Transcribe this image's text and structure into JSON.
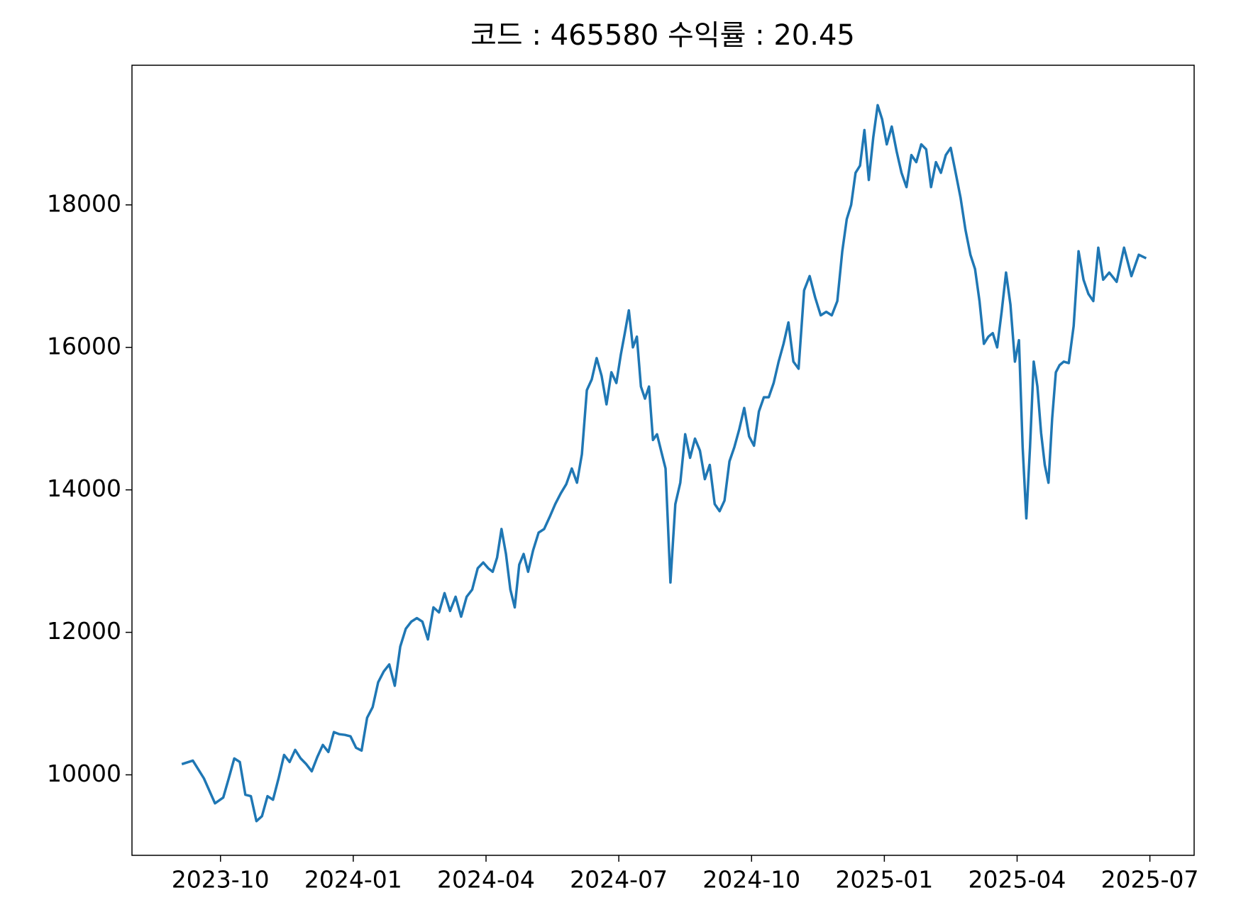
{
  "chart_data": {
    "type": "line",
    "title": "코드 : 465580 수익률 : 20.45",
    "x": [
      "2023-09",
      "2023-09",
      "2023-09",
      "2023-09",
      "2023-10",
      "2023-10",
      "2023-10",
      "2023-10",
      "2023-10",
      "2023-10",
      "2023-10",
      "2023-10",
      "2023-11",
      "2023-11",
      "2023-11",
      "2023-11",
      "2023-11",
      "2023-11",
      "2023-11",
      "2023-11",
      "2023-12",
      "2023-12",
      "2023-12",
      "2023-12",
      "2023-12",
      "2023-12",
      "2023-12",
      "2023-12",
      "2024-01",
      "2024-01",
      "2024-01",
      "2024-01",
      "2024-01",
      "2024-01",
      "2024-01",
      "2024-01",
      "2024-02",
      "2024-02",
      "2024-02",
      "2024-02",
      "2024-02",
      "2024-02",
      "2024-02",
      "2024-02",
      "2024-03",
      "2024-03",
      "2024-03",
      "2024-03",
      "2024-03",
      "2024-03",
      "2024-03",
      "2024-03",
      "2024-04",
      "2024-04",
      "2024-04",
      "2024-04",
      "2024-04",
      "2024-04",
      "2024-04",
      "2024-04",
      "2024-04",
      "2024-04",
      "2024-05",
      "2024-05",
      "2024-05",
      "2024-05",
      "2024-05",
      "2024-05",
      "2024-05",
      "2024-05",
      "2024-06",
      "2024-06",
      "2024-06",
      "2024-06",
      "2024-06",
      "2024-06",
      "2024-06",
      "2024-06",
      "2024-06",
      "2024-07",
      "2024-07",
      "2024-07",
      "2024-07",
      "2024-07",
      "2024-07",
      "2024-07",
      "2024-07",
      "2024-07",
      "2024-07",
      "2024-07",
      "2024-08",
      "2024-08",
      "2024-08",
      "2024-08",
      "2024-08",
      "2024-08",
      "2024-08",
      "2024-08",
      "2024-08",
      "2024-09",
      "2024-09",
      "2024-09",
      "2024-09",
      "2024-09",
      "2024-09",
      "2024-09",
      "2024-09",
      "2024-09",
      "2024-10",
      "2024-10",
      "2024-10",
      "2024-10",
      "2024-10",
      "2024-10",
      "2024-10",
      "2024-10",
      "2024-10",
      "2024-11",
      "2024-11",
      "2024-11",
      "2024-11",
      "2024-11",
      "2024-11",
      "2024-11",
      "2024-11",
      "2024-12",
      "2024-12",
      "2024-12",
      "2024-12",
      "2024-12",
      "2024-12",
      "2024-12",
      "2024-12",
      "2024-12",
      "2024-12",
      "2025-01",
      "2025-01",
      "2025-01",
      "2025-01",
      "2025-01",
      "2025-01",
      "2025-01",
      "2025-01",
      "2025-01",
      "2025-02",
      "2025-02",
      "2025-02",
      "2025-02",
      "2025-02",
      "2025-02",
      "2025-02",
      "2025-02",
      "2025-02",
      "2025-03",
      "2025-03",
      "2025-03",
      "2025-03",
      "2025-03",
      "2025-03",
      "2025-03",
      "2025-03",
      "2025-03",
      "2025-03",
      "2025-04",
      "2025-04",
      "2025-04",
      "2025-04",
      "2025-04",
      "2025-04",
      "2025-04",
      "2025-04",
      "2025-04",
      "2025-04",
      "2025-04",
      "2025-04",
      "2025-05",
      "2025-05",
      "2025-05",
      "2025-05",
      "2025-05",
      "2025-05",
      "2025-05",
      "2025-05",
      "2025-05",
      "2025-06",
      "2025-06",
      "2025-06",
      "2025-06",
      "2025-06",
      "2025-06"
    ],
    "series": [
      {
        "color": "#1f77b4",
        "values": [
          10150,
          10200,
          9950,
          9600,
          9680,
          9950,
          10230,
          10180,
          9720,
          9700,
          9350,
          9420,
          9700,
          9650,
          9950,
          10280,
          10180,
          10350,
          10230,
          10150,
          10050,
          10250,
          10420,
          10320,
          10600,
          10570,
          10560,
          10540,
          10380,
          10340,
          10800,
          10950,
          11300,
          11450,
          11550,
          11250,
          11800,
          12050,
          12150,
          12200,
          12150,
          11900,
          12350,
          12280,
          12550,
          12300,
          12500,
          12220,
          12500,
          12600,
          12900,
          12980,
          12900,
          12850,
          13050,
          13450,
          13100,
          12600,
          12350,
          12950,
          13100,
          12850,
          13150,
          13400,
          13450,
          13620,
          13800,
          13950,
          14080,
          14300,
          14100,
          14500,
          15400,
          15550,
          15850,
          15600,
          15200,
          15650,
          15500,
          15900,
          16200,
          16520,
          16000,
          16150,
          15450,
          15280,
          15450,
          14700,
          14780,
          14550,
          14300,
          12700,
          13800,
          14100,
          14780,
          14450,
          14720,
          14550,
          14150,
          14350,
          13800,
          13700,
          13850,
          14400,
          14600,
          14850,
          15150,
          14750,
          14620,
          15100,
          15300,
          15300,
          15500,
          15800,
          16050,
          16350,
          15800,
          15700,
          16800,
          17000,
          16700,
          16450,
          16500,
          16450,
          16650,
          17350,
          17800,
          18000,
          18450,
          18550,
          19050,
          18350,
          18950,
          19400,
          19200,
          18850,
          19100,
          18750,
          18450,
          18250,
          18700,
          18600,
          18850,
          18780,
          18250,
          18600,
          18450,
          18700,
          18800,
          18450,
          18100,
          17650,
          17300,
          17100,
          16650,
          16050,
          16150,
          16200,
          16000,
          16500,
          17050,
          16600,
          15800,
          16100,
          14600,
          13600,
          14600,
          15800,
          15450,
          14800,
          14350,
          14100,
          15000,
          15650,
          15750,
          15800,
          15780,
          16300,
          17350,
          16950,
          16750,
          16650,
          17400,
          16950,
          17050,
          16920,
          17400,
          17000,
          17300,
          17250
        ]
      }
    ],
    "xlim": [
      "2023-08",
      "2025-08"
    ],
    "xticks": [
      "2023-10",
      "2024-01",
      "2024-04",
      "2024-07",
      "2024-10",
      "2025-01",
      "2025-04",
      "2025-07"
    ],
    "ylim": [
      8870,
      19960
    ],
    "yticks": [
      10000,
      12000,
      14000,
      16000,
      18000
    ]
  }
}
